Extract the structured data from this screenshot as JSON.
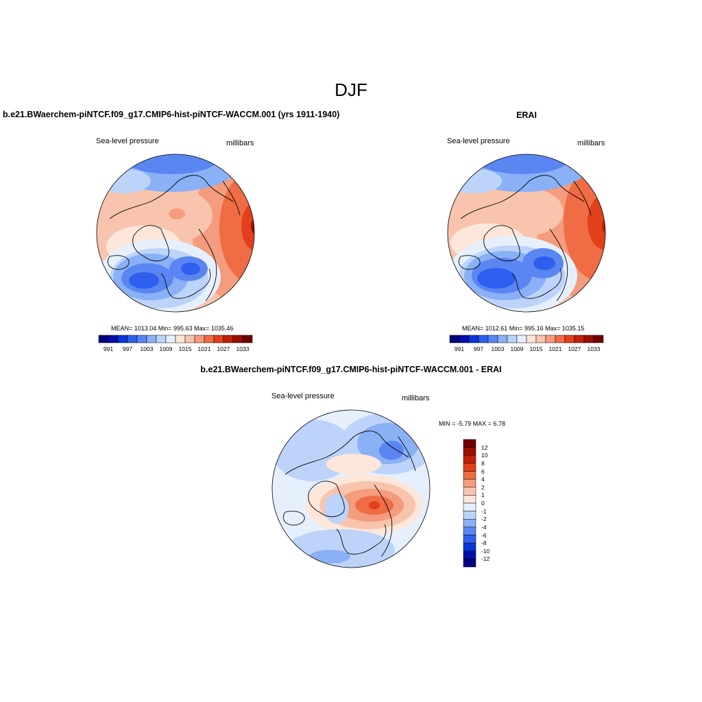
{
  "page": {
    "title": "DJF"
  },
  "panels": {
    "model": {
      "title": "b.e21.BWaerchem-piNTCF.f09_g17.CMIP6-hist-piNTCF-WACCM.001 (yrs 1911-1940)",
      "left_label": "Sea-level pressure",
      "right_label": "millibars",
      "stats": "MEAN= 1013.04   Min= 995.63   Max= 1035.46"
    },
    "obs": {
      "title": "ERAI",
      "left_label": "Sea-level pressure",
      "right_label": "millibars",
      "stats": "MEAN= 1012.61   Min= 995.16   Max= 1035.15"
    },
    "diff": {
      "title": "b.e21.BWaerchem-piNTCF.f09_g17.CMIP6-hist-piNTCF-WACCM.001 - ERAI",
      "left_label": "Sea-level pressure",
      "right_label": "millibars",
      "stats": "MIN =  -5.79 MAX =   6.78"
    }
  },
  "colorbars": {
    "abs": {
      "colors": [
        "#00007f",
        "#0010a8",
        "#0a36d6",
        "#2e5fee",
        "#5a86f2",
        "#8ab0f6",
        "#bcd4fa",
        "#e6f0fd",
        "#fde6da",
        "#f9c4ad",
        "#f49c7d",
        "#ef6c45",
        "#e2401a",
        "#c32008",
        "#9a0f00",
        "#700000"
      ],
      "tick_labels": [
        "991",
        "997",
        "1003",
        "1009",
        "1015",
        "1021",
        "1027",
        "1033"
      ]
    },
    "diff": {
      "colors": [
        "#00007f",
        "#0010a8",
        "#0a36d6",
        "#2e5fee",
        "#5a86f2",
        "#8ab0f6",
        "#bcd4fa",
        "#e6f0fd",
        "#fde6da",
        "#f9c4ad",
        "#f49c7d",
        "#ef6c45",
        "#e2401a",
        "#c32008",
        "#9a0f00",
        "#700000"
      ],
      "tick_labels": [
        "12",
        "10",
        "8",
        "6",
        "4",
        "2",
        "1",
        "0",
        "-1",
        "-2",
        "-4",
        "-6",
        "-8",
        "-10",
        "-12"
      ]
    }
  }
}
